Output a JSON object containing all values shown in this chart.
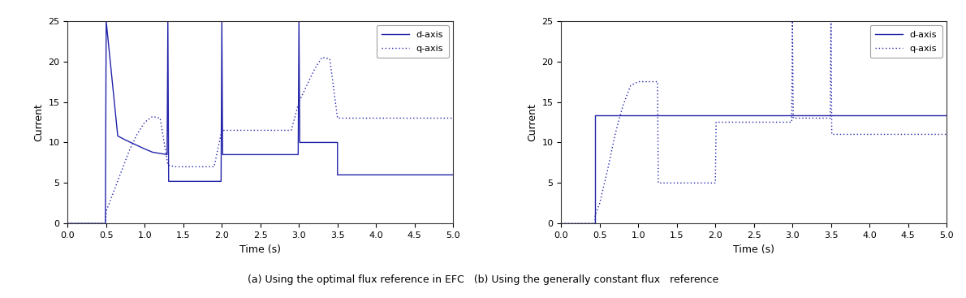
{
  "fig_width": 11.9,
  "fig_height": 3.67,
  "dpi": 100,
  "line_color": "#2222AA",
  "background_color": "#ffffff",
  "xlim": [
    0,
    5
  ],
  "ylim": [
    0,
    25
  ],
  "xticks": [
    0,
    0.5,
    1,
    1.5,
    2,
    2.5,
    3,
    3.5,
    4,
    4.5,
    5
  ],
  "yticks": [
    0,
    5,
    10,
    15,
    20,
    25
  ],
  "xlabel": "Time (s)",
  "ylabel": "Current",
  "caption": "(a) Using the optimal flux reference in EFC   (b) Using the generally constant flux   reference",
  "legend_d": "d-axis",
  "legend_q": "q-axis",
  "plot_a": {
    "d_axis": {
      "x": [
        0,
        0.49,
        0.49,
        0.5,
        0.5,
        0.65,
        0.75,
        1.0,
        1.1,
        1.29,
        1.29,
        1.3,
        1.3,
        1.31,
        1.99,
        1.99,
        2.0,
        2.0,
        2.01,
        2.99,
        2.99,
        3.0,
        3.0,
        3.01,
        3.49,
        3.49,
        3.5,
        3.5,
        5.0
      ],
      "y": [
        0,
        0,
        0,
        25,
        25,
        10.8,
        10.3,
        9.2,
        8.8,
        8.5,
        8.5,
        25,
        25,
        5.2,
        5.2,
        5.2,
        25,
        25,
        8.5,
        8.5,
        8.5,
        25,
        25,
        10.0,
        10.0,
        10.0,
        10.0,
        6.0,
        6.0
      ]
    },
    "q_axis": {
      "x": [
        0,
        0.49,
        0.5,
        0.6,
        0.7,
        0.8,
        0.9,
        1.0,
        1.1,
        1.2,
        1.3,
        1.4,
        1.5,
        1.6,
        1.7,
        1.8,
        1.9,
        2.0,
        2.1,
        2.2,
        2.3,
        2.4,
        2.5,
        2.6,
        2.7,
        2.8,
        2.9,
        3.0,
        3.1,
        3.2,
        3.3,
        3.4,
        3.5,
        5.0
      ],
      "y": [
        0,
        0,
        1.5,
        4.0,
        6.5,
        9.0,
        11.0,
        12.5,
        13.2,
        13.0,
        7.2,
        7.0,
        7.0,
        7.0,
        7.0,
        7.0,
        7.0,
        11.5,
        11.5,
        11.5,
        11.5,
        11.5,
        11.5,
        11.5,
        11.5,
        11.5,
        11.5,
        15.0,
        17.0,
        19.0,
        20.5,
        20.3,
        13.0,
        13.0
      ]
    }
  },
  "plot_b": {
    "d_axis": {
      "x": [
        0,
        0.44,
        0.44,
        5.0
      ],
      "y": [
        0,
        0,
        13.3,
        13.3
      ]
    },
    "q_axis": {
      "x": [
        0,
        0.44,
        0.44,
        0.5,
        0.6,
        0.7,
        0.8,
        0.9,
        1.0,
        1.1,
        1.2,
        1.25,
        1.25,
        1.26,
        2.0,
        2.0,
        2.01,
        2.99,
        2.99,
        3.0,
        3.0,
        3.01,
        3.49,
        3.49,
        3.5,
        3.5,
        3.51,
        5.0
      ],
      "y": [
        0,
        0,
        1.0,
        2.5,
        6.5,
        11.0,
        14.5,
        17.0,
        17.5,
        17.5,
        17.5,
        17.5,
        17.5,
        5.0,
        5.0,
        5.0,
        12.5,
        12.5,
        12.5,
        25,
        25,
        13.0,
        13.0,
        13.0,
        25,
        25,
        11.0,
        11.0
      ]
    }
  }
}
